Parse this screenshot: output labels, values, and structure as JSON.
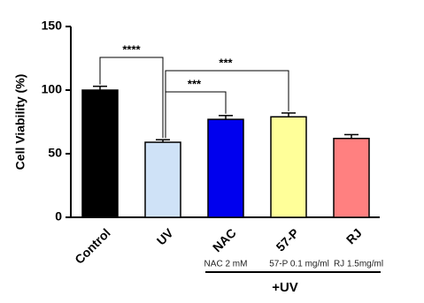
{
  "chart_data": {
    "type": "bar",
    "ylabel": "Cell Viability (%)",
    "categories": [
      "Control",
      "UV",
      "NAC",
      "57-P",
      "RJ"
    ],
    "values": [
      100,
      59,
      77,
      79,
      62
    ],
    "errors": [
      3,
      2,
      3,
      3,
      3
    ],
    "colors": [
      "#000000",
      "#cfe2f7",
      "#0000ee",
      "#ffff99",
      "#ff8080"
    ],
    "ylim": [
      0,
      150
    ],
    "yticks": [
      0,
      50,
      100,
      150
    ],
    "annotations": [
      {
        "text": "****",
        "between": [
          "Control",
          "UV"
        ]
      },
      {
        "text": "***",
        "between": [
          "UV",
          "57-P"
        ]
      },
      {
        "text": "***",
        "between": [
          "UV",
          "NAC"
        ]
      }
    ],
    "treatments": [
      "NAC 2 mM",
      "57-P 0.1 mg/ml",
      "RJ 1.5mg/ml"
    ],
    "group_label": "+UV"
  }
}
